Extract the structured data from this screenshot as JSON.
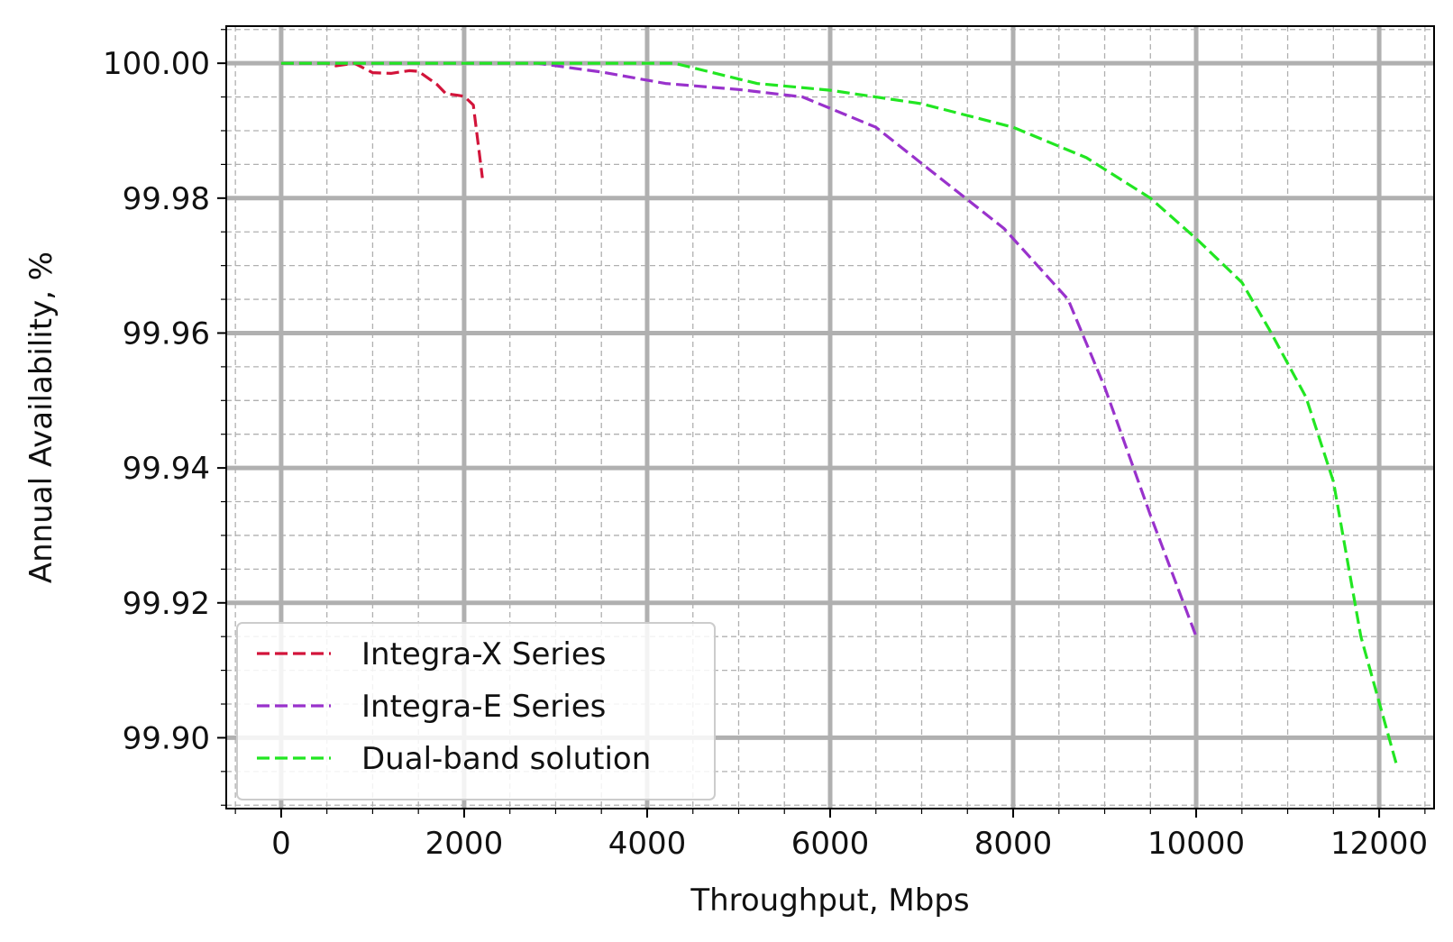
{
  "chart_data": {
    "type": "line",
    "title": "",
    "xlabel": "Throughput, Mbps",
    "ylabel": "Annual Availability, %",
    "xlim": [
      -600,
      12600
    ],
    "ylim": [
      99.8895,
      100.0055
    ],
    "xticks": [
      0,
      2000,
      4000,
      6000,
      8000,
      10000,
      12000
    ],
    "xtick_labels": [
      "0",
      "2000",
      "4000",
      "6000",
      "8000",
      "10000",
      "12000"
    ],
    "yticks": [
      99.9,
      99.92,
      99.94,
      99.96,
      99.98,
      100.0
    ],
    "ytick_labels": [
      "99.90",
      "99.92",
      "99.94",
      "99.96",
      "99.98",
      "100.00"
    ],
    "x_minor_step": 500,
    "y_minor_step": 0.005,
    "grid": true,
    "legend_position": "lower-left",
    "series": [
      {
        "name": "Integra-X Series",
        "color": "#d2143a",
        "points": [
          [
            0,
            100.0
          ],
          [
            500,
            100.0
          ],
          [
            600,
            99.9996
          ],
          [
            800,
            100.0
          ],
          [
            1000,
            99.9986
          ],
          [
            1200,
            99.9985
          ],
          [
            1400,
            99.9989
          ],
          [
            1500,
            99.9988
          ],
          [
            1700,
            99.9969
          ],
          [
            1800,
            99.9955
          ],
          [
            2000,
            99.9951
          ],
          [
            2100,
            99.9938
          ],
          [
            2200,
            99.983
          ]
        ]
      },
      {
        "name": "Integra-E Series",
        "color": "#9932cc",
        "points": [
          [
            0,
            100.0
          ],
          [
            2800,
            100.0
          ],
          [
            3500,
            99.9987
          ],
          [
            4200,
            99.997
          ],
          [
            5000,
            99.9961
          ],
          [
            5700,
            99.995
          ],
          [
            6500,
            99.9905
          ],
          [
            7200,
            99.983
          ],
          [
            7900,
            99.9755
          ],
          [
            8600,
            99.965
          ],
          [
            9000,
            99.952
          ],
          [
            9500,
            99.933
          ],
          [
            10000,
            99.915
          ]
        ]
      },
      {
        "name": "Dual-band solution",
        "color": "#22e622",
        "points": [
          [
            0,
            100.0
          ],
          [
            4300,
            100.0
          ],
          [
            5200,
            99.997
          ],
          [
            6000,
            99.996
          ],
          [
            7000,
            99.994
          ],
          [
            8000,
            99.9905
          ],
          [
            8800,
            99.986
          ],
          [
            9500,
            99.98
          ],
          [
            10000,
            99.974
          ],
          [
            10500,
            99.9675
          ],
          [
            10800,
            99.9605
          ],
          [
            11200,
            99.9505
          ],
          [
            11500,
            99.938
          ],
          [
            11800,
            99.915
          ],
          [
            12200,
            99.8955
          ]
        ]
      }
    ]
  }
}
